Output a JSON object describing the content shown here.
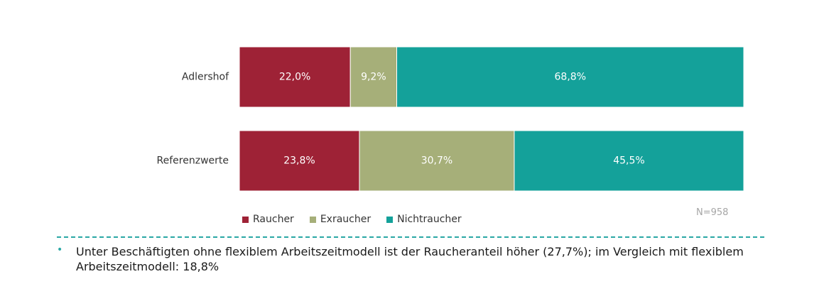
{
  "chart_data": {
    "type": "bar",
    "orientation": "horizontal",
    "stacked": true,
    "percent": true,
    "categories": [
      "Adlershof",
      "Referenzwerte"
    ],
    "series": [
      {
        "name": "Raucher",
        "values": [
          22.0,
          23.8
        ],
        "labels": [
          "22,0%",
          "23,8%"
        ],
        "color": "#9e2236"
      },
      {
        "name": "Exraucher",
        "values": [
          9.2,
          30.7
        ],
        "labels": [
          "9,2%",
          "30,7%"
        ],
        "color": "#a6af79"
      },
      {
        "name": "Nichtraucher",
        "values": [
          68.8,
          45.5
        ],
        "labels": [
          "68,8%",
          "45,5%"
        ],
        "color": "#14a19a"
      }
    ],
    "xlim": [
      0,
      100
    ],
    "grid": false,
    "legend_position": "bottom-left"
  },
  "legend": {
    "items": [
      {
        "label": "Raucher",
        "color": "#9e2236"
      },
      {
        "label": "Exraucher",
        "color": "#a6af79"
      },
      {
        "label": "Nichtraucher",
        "color": "#14a19a"
      }
    ]
  },
  "sample_note": "N=958",
  "bullet_symbol": "•",
  "note_text": "Unter Beschäftigten ohne flexiblem Arbeitszeitmodell ist der Raucheranteil höher (27,7%); im Vergleich mit flexiblem Arbeitszeitmodell: 18,8%",
  "colors": {
    "accent": "#2aa8a5"
  }
}
